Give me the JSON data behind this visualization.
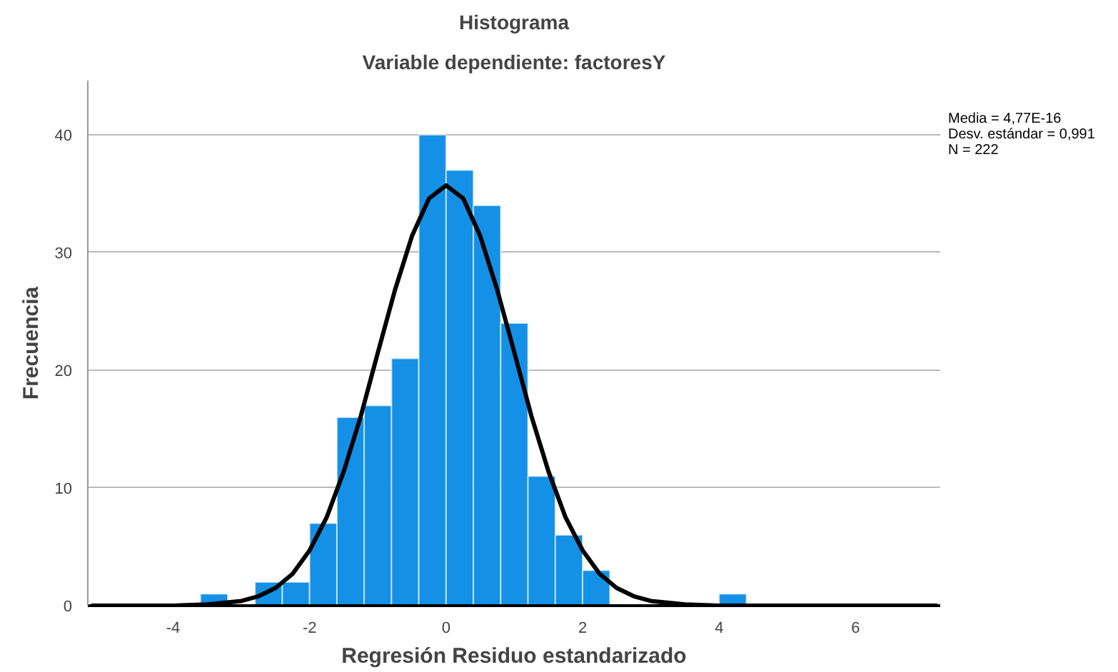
{
  "chart_data": {
    "type": "histogram",
    "title": "Histograma",
    "subtitle": "Variable dependiente: factoresY",
    "xlabel": "Regresión Residuo estandarizado",
    "ylabel": "Frecuencia",
    "bins": [
      -3.6,
      -3.2,
      -2.8,
      -2.4,
      -2.0,
      -1.6,
      -1.2,
      -0.8,
      -0.4,
      0.0,
      0.4,
      0.8,
      1.2,
      1.6,
      2.0,
      2.4,
      2.8,
      3.2,
      3.6,
      4.0,
      4.4
    ],
    "values": [
      1,
      0,
      2,
      2,
      7,
      16,
      17,
      21,
      40,
      37,
      34,
      24,
      11,
      6,
      3,
      0,
      0,
      0,
      0,
      1
    ],
    "color": "#1490e6",
    "series": [
      {
        "type": "line",
        "color": "#000000",
        "x": [
          -5.2,
          -4.0,
          -3.5,
          -3.0,
          -2.75,
          -2.5,
          -2.25,
          -2.0,
          -1.75,
          -1.5,
          -1.25,
          -1.0,
          -0.75,
          -0.5,
          -0.25,
          0.0,
          0.25,
          0.5,
          0.75,
          1.0,
          1.25,
          1.5,
          1.75,
          2.0,
          2.25,
          2.5,
          2.75,
          3.0,
          3.5,
          4.0,
          7.2
        ],
        "values": [
          0,
          0,
          0.1,
          0.4,
          0.8,
          1.5,
          2.7,
          4.7,
          7.5,
          11.4,
          16.1,
          21.5,
          26.8,
          31.4,
          34.6,
          35.7,
          34.6,
          31.4,
          26.8,
          21.5,
          16.1,
          11.4,
          7.5,
          4.7,
          2.7,
          1.5,
          0.8,
          0.4,
          0.1,
          0,
          0
        ]
      }
    ],
    "xlim": [
      -5.25,
      7.24
    ],
    "ylim": [
      0,
      44.6
    ],
    "xticks": [
      -4,
      -2,
      0,
      2,
      4,
      6
    ],
    "yticks": [
      0,
      10,
      20,
      30,
      40
    ],
    "grid": "y",
    "annotations": [
      "Media = 4,77E-16",
      "Desv. estándar = 0,991",
      "N = 222"
    ]
  }
}
